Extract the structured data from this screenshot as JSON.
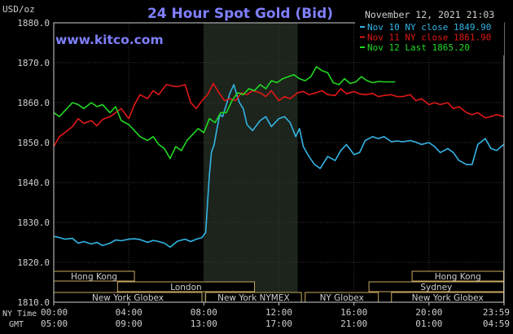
{
  "chart_data": {
    "type": "line",
    "title": "24 Hour Spot Gold (Bid)",
    "watermark": "www.kitco.com",
    "ylabel": "USD/oz",
    "date_label": "November 12, 2021 21:03",
    "ylim": [
      1810,
      1880
    ],
    "yticks": [
      "1880.0",
      "1870.0",
      "1860.0",
      "1850.0",
      "1840.0",
      "1830.0",
      "1820.0",
      "1810.0"
    ],
    "x_ny_label": "NY Time",
    "x_gmt_label": "GMT",
    "x_ny_ticks": [
      "00:00",
      "04:00",
      "08:00",
      "12:00",
      "16:00",
      "20:00",
      "23:59"
    ],
    "x_gmt_ticks": [
      "05:00",
      "09:00",
      "13:00",
      "17:00",
      "21:00",
      "01:00",
      "04:59"
    ],
    "xlim": [
      0,
      24
    ],
    "legend_position": "top-right",
    "colors": {
      "blue": "#33b5e5",
      "red": "#e01818",
      "green": "#22d822",
      "axis": "#cfcfcf",
      "grid": "#3a3a3a",
      "shade": "#1c241c",
      "session": "#c8a860",
      "title": "#7f7fff"
    },
    "series": [
      {
        "name": "Nov 10 NY close 1849.90",
        "color": "#33b5e5",
        "x": [
          0,
          0.3,
          0.6,
          1,
          1.3,
          1.6,
          2,
          2.3,
          2.6,
          3,
          3.3,
          3.6,
          4,
          4.3,
          4.6,
          5,
          5.3,
          5.6,
          5.9,
          6.2,
          6.6,
          7,
          7.3,
          7.6,
          7.9,
          8.1,
          8.2,
          8.3,
          8.4,
          8.55,
          8.7,
          8.85,
          9,
          9.2,
          9.4,
          9.6,
          9.75,
          9.9,
          10.1,
          10.3,
          10.6,
          11,
          11.3,
          11.6,
          12,
          12.3,
          12.6,
          12.9,
          13.1,
          13.3,
          13.6,
          13.9,
          14.2,
          14.6,
          15,
          15.3,
          15.6,
          16,
          16.3,
          16.6,
          17,
          17.3,
          17.6,
          18,
          18.3,
          18.6,
          19,
          19.3,
          19.6,
          20,
          20.3,
          20.6,
          21,
          21.3,
          21.6,
          22,
          22.3,
          22.6,
          23,
          23.3,
          23.6,
          23.98
        ],
        "values": [
          1826.5,
          1826.2,
          1825.8,
          1826.0,
          1824.8,
          1825.2,
          1824.6,
          1825.0,
          1824.2,
          1824.8,
          1825.6,
          1825.4,
          1825.8,
          1825.9,
          1825.7,
          1825.0,
          1825.5,
          1825.2,
          1824.8,
          1823.8,
          1825.3,
          1825.8,
          1825.2,
          1825.8,
          1826.2,
          1827.5,
          1835.0,
          1842.0,
          1847.5,
          1849.5,
          1853.5,
          1857.0,
          1856.5,
          1859.5,
          1862.5,
          1864.5,
          1862.0,
          1860.0,
          1858.5,
          1854.5,
          1853.0,
          1855.5,
          1856.5,
          1854.0,
          1856.0,
          1856.5,
          1855.0,
          1851.5,
          1853.5,
          1849.0,
          1846.5,
          1844.5,
          1843.5,
          1846.5,
          1845.5,
          1848.0,
          1849.5,
          1847.0,
          1847.5,
          1850.5,
          1851.5,
          1851.0,
          1851.5,
          1850.2,
          1850.4,
          1850.2,
          1850.5,
          1850.1,
          1849.5,
          1850.0,
          1849.0,
          1847.5,
          1848.5,
          1847.5,
          1845.5,
          1844.5,
          1844.5,
          1849.5,
          1851.0,
          1848.5,
          1848.0,
          1849.5
        ]
      },
      {
        "name": "Nov 11 NY close 1861.90",
        "color": "#e01818",
        "x": [
          0,
          0.3,
          0.6,
          1,
          1.3,
          1.6,
          2,
          2.3,
          2.6,
          3,
          3.3,
          3.6,
          4,
          4.3,
          4.6,
          5,
          5.3,
          5.6,
          6,
          6.3,
          6.6,
          7,
          7.3,
          7.6,
          7.9,
          8.2,
          8.5,
          8.8,
          9.1,
          9.4,
          9.7,
          10,
          10.3,
          10.6,
          11,
          11.3,
          11.6,
          12,
          12.3,
          12.6,
          13,
          13.3,
          13.6,
          14,
          14.3,
          14.6,
          15,
          15.3,
          15.6,
          16,
          16.3,
          16.6,
          17,
          17.3,
          17.6,
          18,
          18.3,
          18.6,
          19,
          19.3,
          19.6,
          20,
          20.3,
          20.6,
          21,
          21.3,
          21.6,
          22,
          22.3,
          22.6,
          23,
          23.3,
          23.6,
          23.98
        ],
        "values": [
          1849.0,
          1851.5,
          1852.5,
          1854.0,
          1856.0,
          1854.8,
          1855.5,
          1854.2,
          1855.8,
          1856.5,
          1857.5,
          1858.5,
          1856.0,
          1859.5,
          1862.0,
          1861.0,
          1863.0,
          1862.0,
          1864.5,
          1864.2,
          1864.0,
          1864.5,
          1860.0,
          1858.5,
          1860.5,
          1862.0,
          1864.8,
          1862.5,
          1860.5,
          1861.0,
          1860.5,
          1862.5,
          1862.0,
          1863.0,
          1862.5,
          1861.5,
          1863.0,
          1860.5,
          1861.5,
          1861.0,
          1862.5,
          1862.8,
          1862.0,
          1862.5,
          1863.0,
          1862.0,
          1861.8,
          1863.5,
          1862.2,
          1862.8,
          1862.2,
          1862.0,
          1862.3,
          1861.5,
          1861.8,
          1862.0,
          1861.5,
          1861.5,
          1862.0,
          1860.5,
          1861.0,
          1859.5,
          1860.0,
          1859.5,
          1860.0,
          1858.5,
          1859.0,
          1857.5,
          1857.0,
          1857.5,
          1856.2,
          1856.5,
          1857.0,
          1856.5
        ]
      },
      {
        "name": "Nov 12 Last 1865.20",
        "color": "#22d822",
        "x": [
          0,
          0.3,
          0.6,
          1,
          1.3,
          1.6,
          2,
          2.3,
          2.6,
          3,
          3.3,
          3.6,
          4,
          4.3,
          4.6,
          5,
          5.3,
          5.6,
          5.9,
          6.2,
          6.5,
          6.8,
          7.1,
          7.4,
          7.7,
          8,
          8.3,
          8.6,
          8.9,
          9.2,
          9.5,
          9.8,
          10.1,
          10.4,
          10.7,
          11,
          11.3,
          11.6,
          11.9,
          12.2,
          12.5,
          12.8,
          13.1,
          13.4,
          13.7,
          14,
          14.3,
          14.6,
          14.9,
          15.2,
          15.5,
          15.8,
          16.1,
          16.4,
          16.7,
          17,
          17.3,
          17.6,
          17.9,
          18.2
        ],
        "values": [
          1857.5,
          1856.5,
          1858.0,
          1860.0,
          1859.5,
          1858.5,
          1860.0,
          1859.0,
          1859.5,
          1857.5,
          1859.0,
          1855.5,
          1854.5,
          1853.0,
          1851.5,
          1850.5,
          1851.5,
          1849.5,
          1848.5,
          1846.0,
          1849.0,
          1848.0,
          1850.5,
          1852.0,
          1853.5,
          1852.5,
          1856.0,
          1855.0,
          1857.5,
          1857.5,
          1860.5,
          1862.5,
          1862.0,
          1863.5,
          1863.0,
          1864.5,
          1863.5,
          1865.5,
          1865.0,
          1866.0,
          1866.5,
          1867.0,
          1866.0,
          1865.5,
          1866.5,
          1869.0,
          1868.0,
          1867.5,
          1865.0,
          1864.5,
          1866.0,
          1864.8,
          1865.2,
          1866.5,
          1865.5,
          1865.0,
          1865.3,
          1865.2,
          1865.2,
          1865.2
        ]
      }
    ],
    "highlight_band": [
      8,
      13
    ],
    "sessions": [
      {
        "label": "Hong Kong",
        "start": 0,
        "end": 4.3,
        "row": 0
      },
      {
        "label": "London",
        "start": 3.4,
        "end": 10.7,
        "row": 1
      },
      {
        "label": "New York Globex",
        "start": 0,
        "end": 7.9,
        "row": 2
      },
      {
        "label": "New York NYMEX",
        "start": 8.1,
        "end": 13.2,
        "row": 2
      },
      {
        "label": "NY Globex",
        "start": 13.4,
        "end": 17.3,
        "row": 2
      },
      {
        "label": "Hong Kong",
        "start": 19.1,
        "end": 23.98,
        "row": 0
      },
      {
        "label": "Sydney",
        "start": 16.8,
        "end": 23.98,
        "row": 1
      },
      {
        "label": "New York Globex",
        "start": 18.0,
        "end": 23.98,
        "row": 2
      }
    ]
  }
}
